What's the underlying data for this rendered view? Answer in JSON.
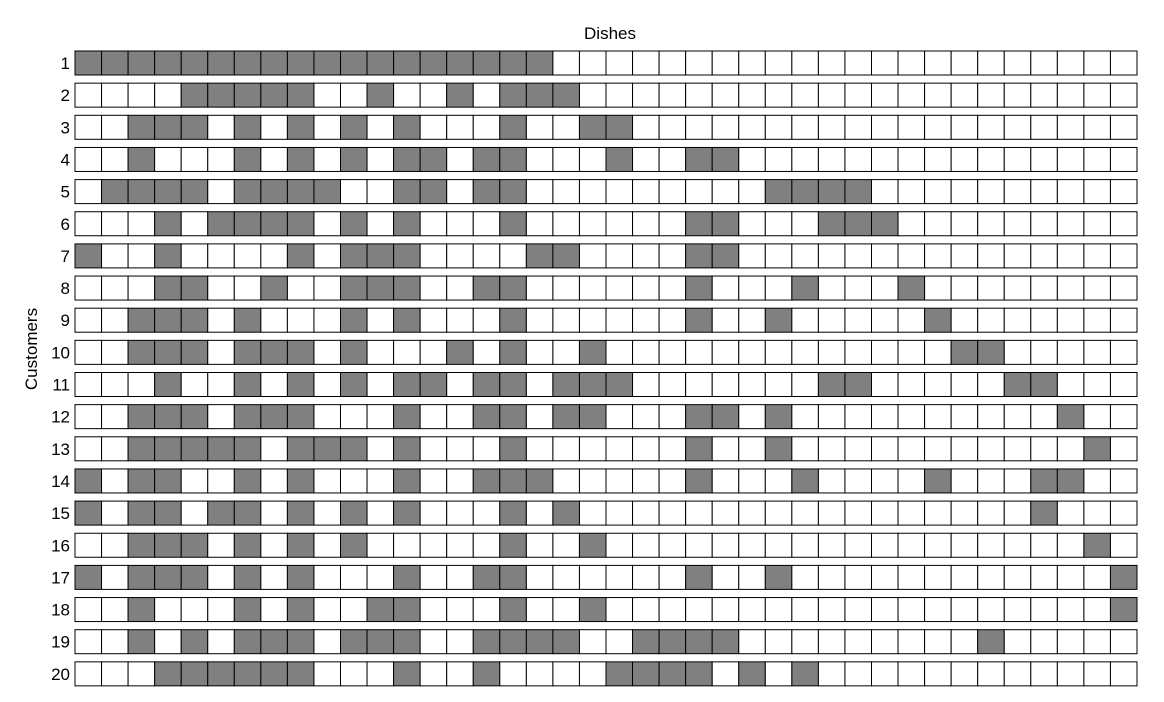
{
  "chart_data": {
    "type": "heatmap",
    "title": "Dishes",
    "xlabel": "",
    "ylabel": "Customers",
    "columns": 40,
    "row_labels": [
      "1",
      "2",
      "3",
      "4",
      "5",
      "6",
      "7",
      "8",
      "9",
      "10",
      "11",
      "12",
      "13",
      "14",
      "15",
      "16",
      "17",
      "18",
      "19",
      "20"
    ],
    "filled_color": "#808080",
    "empty_color": "#ffffff",
    "matrix": [
      "1111111111111111110000000000000000000000",
      "0000111110010010111000000000000000000000",
      "0011101010101000100110000000000000000000",
      "0010001010101101100010011000000000000000",
      "0111101111001101100000000011110000000000",
      "0001011110101000100000011000111000000000",
      "1001000010111000011000011000000000000000",
      "0001100100111001100000010001000100000000",
      "0011101000101000100000010010000010000000",
      "0011101110100010100100000000000001100000",
      "0001001010101101101110000000110000011000",
      "0011101110001001101100011010000000000100",
      "0011111011101000100000010010000000000010",
      "1011001010001001110000010001000010001100",
      "1011011010101000101000000000000000001000",
      "0011101010100000100100000000000000000010",
      "1011101010001001100000010010000000000001",
      "0010001010011000100100000000000000000001",
      "0010101110111001111001111000000000100000",
      "0001111110001001000011110101000000000000"
    ]
  }
}
